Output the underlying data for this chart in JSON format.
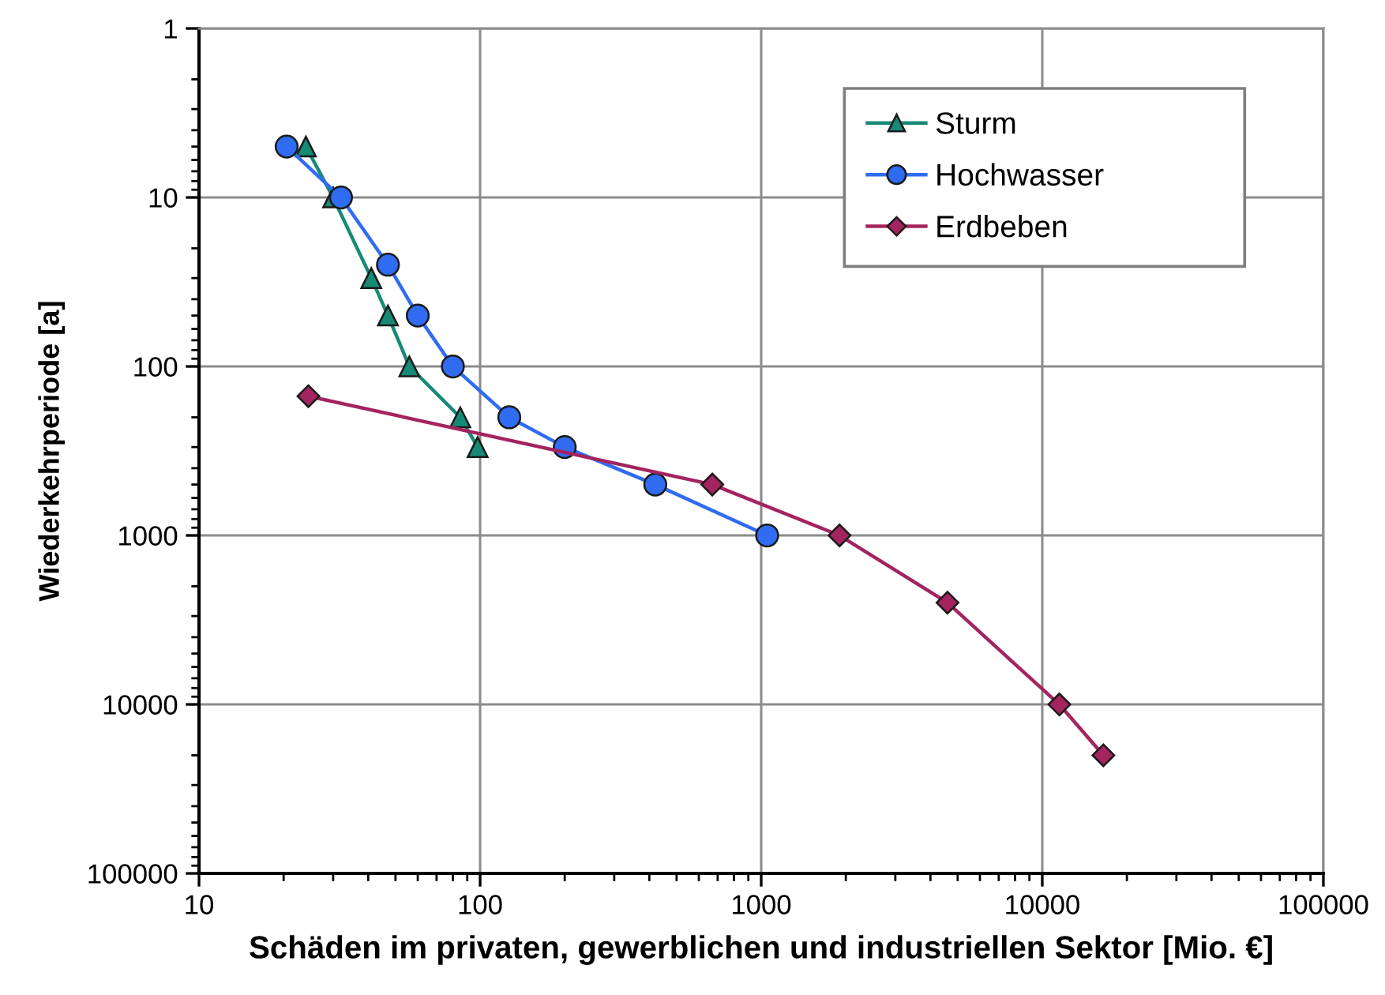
{
  "chart_data": {
    "type": "line",
    "xlabel": "Schäden im privaten, gewerblichen und industriellen Sektor [Mio. €]",
    "ylabel": "Wiederkehrperiode [a]",
    "log": "xy",
    "xlim": [
      10,
      100000
    ],
    "xticks": [
      10,
      100,
      1000,
      10000,
      100000
    ],
    "ylim": [
      100000,
      1
    ],
    "yticks": [
      1,
      10,
      100,
      1000,
      10000,
      100000
    ],
    "grid": true,
    "legend": "top right",
    "line_style": "solid",
    "series": [
      {
        "name": "Sturm",
        "color": "#178a76",
        "marker": "triangle",
        "x": [
          24,
          30,
          41,
          47,
          56,
          85,
          98
        ],
        "values": [
          5,
          10,
          30,
          50,
          100,
          200,
          300
        ]
      },
      {
        "name": "Hochwasser",
        "color": "#2f6cf2",
        "marker": "circle",
        "x": [
          20.5,
          32,
          47,
          60,
          80,
          127,
          200,
          420,
          1050
        ],
        "values": [
          5,
          10,
          25,
          50,
          100,
          200,
          300,
          500,
          1000
        ]
      },
      {
        "name": "Erdbeben",
        "color": "#a3245e",
        "marker": "diamond",
        "x": [
          24.5,
          670,
          1900,
          4600,
          11500,
          16500
        ],
        "values": [
          150,
          500,
          1000,
          2500,
          10000,
          20000
        ]
      }
    ]
  }
}
